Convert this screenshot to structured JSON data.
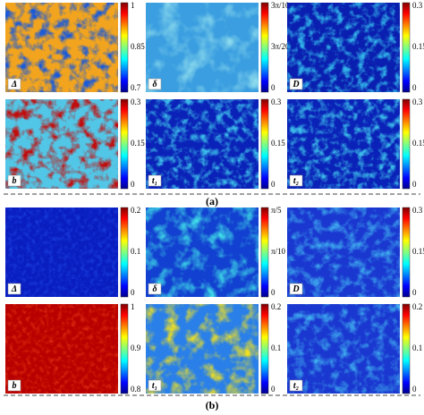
{
  "figure": {
    "groups": [
      {
        "label": "(a)",
        "panels": [
          {
            "symbol": "Δ",
            "ticks": [
              "1",
              "0.85",
              "0.7"
            ]
          },
          {
            "symbol": "δ",
            "ticks": [
              "3π/10",
              "3π/20",
              "0"
            ]
          },
          {
            "symbol": "D",
            "ticks": [
              "0.3",
              "0.15",
              "0"
            ]
          },
          {
            "symbol": "b",
            "ticks": [
              "0.3",
              "0.15",
              "0"
            ]
          },
          {
            "symbol": "t₁",
            "ticks": [
              "0.3",
              "0.15",
              "0"
            ]
          },
          {
            "symbol": "t₂",
            "ticks": [
              "0.3",
              "0.15",
              "0"
            ]
          }
        ]
      },
      {
        "label": "(b)",
        "panels": [
          {
            "symbol": "Δ",
            "ticks": [
              "0.2",
              "0.1",
              "0"
            ]
          },
          {
            "symbol": "δ",
            "ticks": [
              "π/5",
              "π/10",
              "0"
            ]
          },
          {
            "symbol": "D",
            "ticks": [
              "0.3",
              "0.15",
              "0"
            ]
          },
          {
            "symbol": "b",
            "ticks": [
              "1",
              "0.9",
              "0.8"
            ]
          },
          {
            "symbol": "t₁",
            "ticks": [
              "0.2",
              "0.1",
              "0"
            ]
          },
          {
            "symbol": "t₂",
            "ticks": [
              "0.2",
              "0.1",
              "0"
            ]
          }
        ]
      }
    ]
  }
}
